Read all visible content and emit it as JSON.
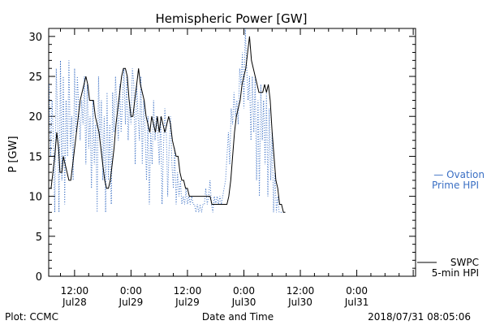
{
  "chart_data": {
    "type": "line",
    "title": "Hemispheric Power [GW]",
    "ylabel": "P [GW]",
    "xlabel": "Date and Time",
    "ylim": [
      0,
      31
    ],
    "yticks": [
      0,
      5,
      10,
      15,
      20,
      25,
      30
    ],
    "x_unit": "hours since 2018/07/28 00:00",
    "xlim": [
      6.5,
      84.5
    ],
    "xticks": [
      {
        "x": 12,
        "line1": "12:00",
        "line2": "Jul28"
      },
      {
        "x": 24,
        "line1": "0:00",
        "line2": "Jul29"
      },
      {
        "x": 36,
        "line1": "12:00",
        "line2": "Jul29"
      },
      {
        "x": 48,
        "line1": "0:00",
        "line2": "Jul30"
      },
      {
        "x": 60,
        "line1": "12:00",
        "line2": "Jul30"
      },
      {
        "x": 72,
        "line1": "0:00",
        "line2": "Jul31"
      }
    ],
    "series": [
      {
        "name": "SWPC 5-min HPI",
        "color": "#000000",
        "style": "solid",
        "points": [
          [
            6.6,
            11
          ],
          [
            7.0,
            11
          ],
          [
            7.4,
            13
          ],
          [
            7.8,
            15
          ],
          [
            8.2,
            18
          ],
          [
            8.6,
            16
          ],
          [
            8.9,
            13
          ],
          [
            9.3,
            13
          ],
          [
            9.6,
            15
          ],
          [
            10.0,
            14
          ],
          [
            10.4,
            13
          ],
          [
            10.8,
            12
          ],
          [
            11.2,
            12
          ],
          [
            11.6,
            14
          ],
          [
            12.0,
            16
          ],
          [
            12.4,
            18
          ],
          [
            12.8,
            20
          ],
          [
            13.2,
            22
          ],
          [
            13.6,
            23
          ],
          [
            14.0,
            24
          ],
          [
            14.4,
            25
          ],
          [
            14.8,
            24
          ],
          [
            15.2,
            22
          ],
          [
            15.6,
            22
          ],
          [
            16.0,
            22
          ],
          [
            16.4,
            20
          ],
          [
            16.8,
            19
          ],
          [
            17.2,
            18
          ],
          [
            17.6,
            16
          ],
          [
            18.0,
            14
          ],
          [
            18.4,
            12
          ],
          [
            18.8,
            11
          ],
          [
            19.2,
            11
          ],
          [
            19.6,
            12
          ],
          [
            20.0,
            14
          ],
          [
            20.4,
            16
          ],
          [
            20.8,
            19
          ],
          [
            21.2,
            21
          ],
          [
            21.6,
            23
          ],
          [
            22.0,
            25
          ],
          [
            22.4,
            26
          ],
          [
            22.8,
            26
          ],
          [
            23.2,
            25
          ],
          [
            23.6,
            22
          ],
          [
            24.0,
            20
          ],
          [
            24.4,
            20
          ],
          [
            24.8,
            22
          ],
          [
            25.2,
            24
          ],
          [
            25.6,
            26
          ],
          [
            26.0,
            24
          ],
          [
            26.4,
            23
          ],
          [
            26.8,
            22
          ],
          [
            27.2,
            20
          ],
          [
            27.6,
            19
          ],
          [
            28.0,
            18
          ],
          [
            28.4,
            20
          ],
          [
            28.8,
            19
          ],
          [
            29.2,
            18
          ],
          [
            29.6,
            20
          ],
          [
            30.0,
            18
          ],
          [
            30.4,
            20
          ],
          [
            30.8,
            19
          ],
          [
            31.2,
            18
          ],
          [
            31.6,
            19
          ],
          [
            32.0,
            20
          ],
          [
            32.4,
            19
          ],
          [
            32.8,
            17
          ],
          [
            33.2,
            16
          ],
          [
            33.6,
            15
          ],
          [
            34.0,
            15
          ],
          [
            34.4,
            13
          ],
          [
            34.8,
            12
          ],
          [
            35.2,
            12
          ],
          [
            35.6,
            11
          ],
          [
            36.0,
            11
          ],
          [
            36.4,
            10
          ],
          [
            36.8,
            10
          ],
          [
            37.2,
            10
          ],
          [
            37.6,
            10
          ],
          [
            38.0,
            10
          ],
          [
            38.4,
            10
          ],
          [
            38.8,
            10
          ],
          [
            39.2,
            10
          ],
          [
            39.6,
            10
          ],
          [
            40.0,
            10
          ],
          [
            40.4,
            10
          ],
          [
            40.8,
            10
          ],
          [
            41.2,
            9
          ],
          [
            41.6,
            9
          ],
          [
            42.0,
            9
          ],
          [
            42.4,
            9
          ],
          [
            42.8,
            9
          ],
          [
            43.2,
            9
          ],
          [
            43.6,
            9
          ],
          [
            44.0,
            9
          ],
          [
            44.4,
            9
          ],
          [
            44.8,
            10
          ],
          [
            45.2,
            12
          ],
          [
            45.6,
            15
          ],
          [
            46.0,
            18
          ],
          [
            46.4,
            20
          ],
          [
            46.8,
            21
          ],
          [
            47.2,
            22
          ],
          [
            47.6,
            24
          ],
          [
            48.0,
            25
          ],
          [
            48.4,
            26
          ],
          [
            48.8,
            28
          ],
          [
            49.2,
            30
          ],
          [
            49.6,
            27
          ],
          [
            50.0,
            26
          ],
          [
            50.4,
            25
          ],
          [
            50.8,
            24
          ],
          [
            51.2,
            23
          ],
          [
            51.6,
            23
          ],
          [
            52.0,
            23
          ],
          [
            52.4,
            24
          ],
          [
            52.8,
            23
          ],
          [
            53.2,
            24
          ],
          [
            53.6,
            22
          ],
          [
            54.0,
            18
          ],
          [
            54.4,
            15
          ],
          [
            54.8,
            12
          ],
          [
            55.2,
            11
          ],
          [
            55.6,
            9
          ],
          [
            56.0,
            9
          ],
          [
            56.4,
            8
          ],
          [
            56.8,
            8
          ]
        ]
      },
      {
        "name": "Ovation Prime HPI",
        "color": "#3a6fc4",
        "style": "dotted",
        "points": [
          [
            6.6,
            24
          ],
          [
            6.9,
            15
          ],
          [
            7.2,
            22
          ],
          [
            7.5,
            17
          ],
          [
            7.8,
            8
          ],
          [
            8.1,
            26
          ],
          [
            8.4,
            20
          ],
          [
            8.7,
            8
          ],
          [
            9.0,
            27
          ],
          [
            9.3,
            12
          ],
          [
            9.6,
            25
          ],
          [
            9.9,
            9
          ],
          [
            10.2,
            22
          ],
          [
            10.5,
            15
          ],
          [
            10.8,
            27
          ],
          [
            11.1,
            16
          ],
          [
            11.4,
            20
          ],
          [
            11.7,
            12
          ],
          [
            12.0,
            26
          ],
          [
            12.3,
            18
          ],
          [
            12.6,
            25
          ],
          [
            12.9,
            21
          ],
          [
            13.2,
            17
          ],
          [
            13.5,
            22
          ],
          [
            13.8,
            19
          ],
          [
            14.1,
            25
          ],
          [
            14.4,
            14
          ],
          [
            14.7,
            24
          ],
          [
            15.0,
            16
          ],
          [
            15.3,
            20
          ],
          [
            15.6,
            11
          ],
          [
            15.9,
            22
          ],
          [
            16.2,
            14
          ],
          [
            16.5,
            19
          ],
          [
            16.8,
            8
          ],
          [
            17.1,
            25
          ],
          [
            17.4,
            17
          ],
          [
            17.7,
            22
          ],
          [
            18.0,
            12
          ],
          [
            18.3,
            20
          ],
          [
            18.6,
            8
          ],
          [
            18.9,
            23
          ],
          [
            19.2,
            12
          ],
          [
            19.5,
            19
          ],
          [
            19.8,
            9
          ],
          [
            20.1,
            23
          ],
          [
            20.4,
            18
          ],
          [
            20.7,
            25
          ],
          [
            21.0,
            21
          ],
          [
            21.3,
            17
          ],
          [
            21.6,
            24
          ],
          [
            21.9,
            18
          ],
          [
            22.2,
            22
          ],
          [
            22.5,
            26
          ],
          [
            22.8,
            19
          ],
          [
            23.1,
            25
          ],
          [
            23.4,
            17
          ],
          [
            23.7,
            22
          ],
          [
            24.0,
            19
          ],
          [
            24.3,
            26
          ],
          [
            24.6,
            24
          ],
          [
            24.9,
            14
          ],
          [
            25.2,
            24
          ],
          [
            25.5,
            20
          ],
          [
            25.8,
            17
          ],
          [
            26.1,
            25
          ],
          [
            26.4,
            14
          ],
          [
            26.7,
            22
          ],
          [
            27.0,
            18
          ],
          [
            27.3,
            12
          ],
          [
            27.6,
            20
          ],
          [
            27.9,
            9
          ],
          [
            28.2,
            18
          ],
          [
            28.5,
            14
          ],
          [
            28.8,
            22
          ],
          [
            29.1,
            17
          ],
          [
            29.4,
            20
          ],
          [
            29.7,
            18
          ],
          [
            30.0,
            14
          ],
          [
            30.3,
            20
          ],
          [
            30.6,
            9
          ],
          [
            30.9,
            16
          ],
          [
            31.2,
            21
          ],
          [
            31.5,
            18
          ],
          [
            31.8,
            10
          ],
          [
            32.1,
            16
          ],
          [
            32.4,
            20
          ],
          [
            32.7,
            14
          ],
          [
            33.0,
            11
          ],
          [
            33.3,
            16
          ],
          [
            33.6,
            9
          ],
          [
            33.9,
            13
          ],
          [
            34.2,
            10
          ],
          [
            34.5,
            12
          ],
          [
            34.8,
            9
          ],
          [
            35.1,
            10
          ],
          [
            35.4,
            9
          ],
          [
            35.7,
            11
          ],
          [
            36.0,
            9
          ],
          [
            36.3,
            10
          ],
          [
            36.6,
            9
          ],
          [
            36.9,
            10
          ],
          [
            37.2,
            9
          ],
          [
            37.5,
            9
          ],
          [
            37.8,
            8
          ],
          [
            38.1,
            9
          ],
          [
            38.4,
            8
          ],
          [
            38.7,
            9
          ],
          [
            39.0,
            8
          ],
          [
            39.3,
            9
          ],
          [
            39.6,
            9
          ],
          [
            39.9,
            11
          ],
          [
            40.2,
            9
          ],
          [
            40.5,
            10
          ],
          [
            40.8,
            12
          ],
          [
            41.1,
            9
          ],
          [
            41.4,
            8
          ],
          [
            41.7,
            10
          ],
          [
            42.0,
            9
          ],
          [
            42.3,
            10
          ],
          [
            42.6,
            9
          ],
          [
            42.9,
            10
          ],
          [
            43.2,
            9
          ],
          [
            43.5,
            10
          ],
          [
            43.8,
            11
          ],
          [
            44.1,
            12
          ],
          [
            44.4,
            15
          ],
          [
            44.7,
            18
          ],
          [
            45.0,
            14
          ],
          [
            45.3,
            21
          ],
          [
            45.6,
            19
          ],
          [
            45.9,
            23
          ],
          [
            46.2,
            20
          ],
          [
            46.5,
            22
          ],
          [
            46.8,
            19
          ],
          [
            47.1,
            26
          ],
          [
            47.4,
            24
          ],
          [
            47.7,
            28
          ],
          [
            48.0,
            21
          ],
          [
            48.3,
            31
          ],
          [
            48.6,
            26
          ],
          [
            48.9,
            22
          ],
          [
            49.2,
            25
          ],
          [
            49.5,
            17
          ],
          [
            49.8,
            25
          ],
          [
            50.1,
            18
          ],
          [
            50.4,
            25
          ],
          [
            50.7,
            12
          ],
          [
            51.0,
            22
          ],
          [
            51.3,
            10
          ],
          [
            51.6,
            24
          ],
          [
            51.9,
            17
          ],
          [
            52.2,
            22
          ],
          [
            52.5,
            14
          ],
          [
            52.8,
            23
          ],
          [
            53.1,
            10
          ],
          [
            53.4,
            21
          ],
          [
            53.7,
            12
          ],
          [
            54.0,
            18
          ],
          [
            54.3,
            8
          ],
          [
            54.6,
            13
          ],
          [
            54.9,
            8
          ],
          [
            55.2,
            10
          ],
          [
            55.5,
            8
          ],
          [
            55.8,
            8
          ],
          [
            56.1,
            8
          ],
          [
            56.4,
            8
          ],
          [
            56.8,
            8
          ]
        ]
      }
    ],
    "legend": [
      {
        "line1": "— Ovation",
        "line2": "Prime HPI",
        "color": "#3a6fc4"
      },
      {
        "line1": "SWPC",
        "line2": "5-min HPI",
        "color": "#000000"
      }
    ]
  },
  "footer": {
    "left": "Plot: CCMC",
    "center": "Date and Time",
    "right": "2018/07/31 08:05:06"
  }
}
